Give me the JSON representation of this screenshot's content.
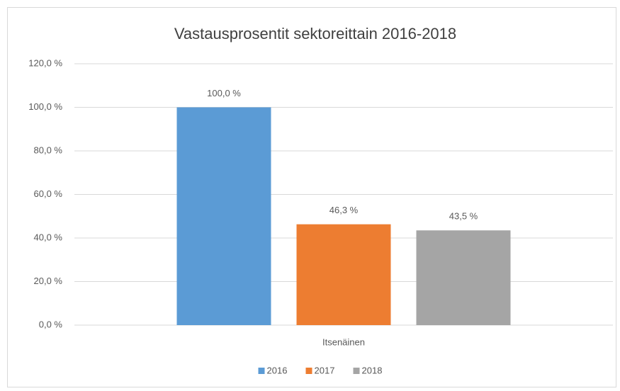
{
  "chart_data": {
    "type": "bar",
    "title": "Vastausprosentit sektoreittain 2016-2018",
    "categories": [
      "Itsenäinen"
    ],
    "series": [
      {
        "name": "2016",
        "color": "#5b9bd5",
        "values": [
          100.0
        ],
        "value_labels": [
          "100,0 %"
        ]
      },
      {
        "name": "2017",
        "color": "#ed7d31",
        "values": [
          46.3
        ],
        "value_labels": [
          "46,3 %"
        ]
      },
      {
        "name": "2018",
        "color": "#a5a5a5",
        "values": [
          43.5
        ],
        "value_labels": [
          "43,5 %"
        ]
      }
    ],
    "ylim": [
      0,
      120
    ],
    "yticks": [
      {
        "value": 0,
        "label": "0,0 %"
      },
      {
        "value": 20,
        "label": "20,0 %"
      },
      {
        "value": 40,
        "label": "40,0 %"
      },
      {
        "value": 60,
        "label": "60,0 %"
      },
      {
        "value": 80,
        "label": "80,0 %"
      },
      {
        "value": 100,
        "label": "100,0 %"
      },
      {
        "value": 120,
        "label": "120,0 %"
      }
    ],
    "grid": true,
    "legend": "bottom"
  }
}
